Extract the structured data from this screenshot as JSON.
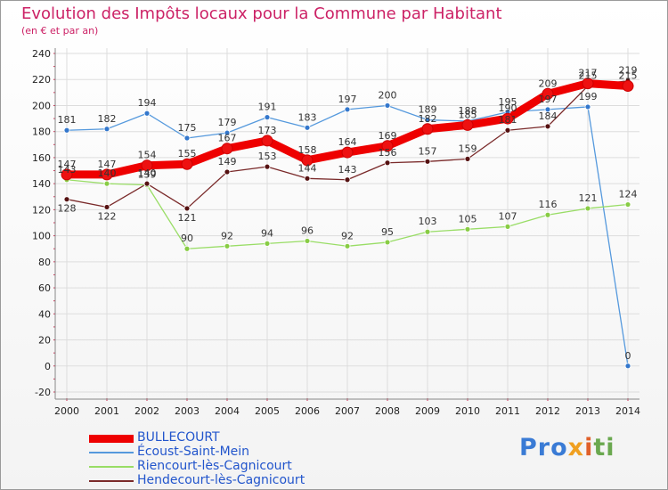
{
  "title": "Evolution des Impôts locaux pour la Commune par Habitant",
  "subtitle": "(en € et par an)",
  "logo": {
    "p1": "Pro",
    "p2": "x",
    "p3": "i",
    "p4": "ti"
  },
  "chart_data": {
    "type": "line",
    "title": "Evolution des Impôts locaux pour la Commune par Habitant",
    "ylabel": "(en € et par an)",
    "ylim": [
      -20,
      240
    ],
    "yticks": [
      -20,
      0,
      20,
      40,
      60,
      80,
      100,
      120,
      140,
      160,
      180,
      200,
      220,
      240
    ],
    "x": [
      "2000",
      "2001",
      "2002",
      "2003",
      "2004",
      "2005",
      "2006",
      "2007",
      "2008",
      "2009",
      "2010",
      "2011",
      "2012",
      "2013",
      "2014"
    ],
    "series": [
      {
        "name": "BULLECOURT",
        "color": "#ee0000",
        "marker": "#ee1111",
        "bold": true,
        "values": [
          147,
          147,
          154,
          155,
          167,
          173,
          158,
          164,
          169,
          182,
          185,
          190,
          209,
          217,
          215
        ]
      },
      {
        "name": "Écoust-Saint-Mein",
        "color": "#5599dd",
        "marker": "#3377cc",
        "bold": false,
        "values": [
          181,
          182,
          194,
          175,
          179,
          191,
          183,
          197,
          200,
          189,
          188,
          195,
          197,
          199,
          0
        ]
      },
      {
        "name": "Riencourt-lès-Cagnicourt",
        "color": "#99dd66",
        "marker": "#88cc44",
        "bold": false,
        "values": [
          143,
          140,
          139,
          90,
          92,
          94,
          96,
          92,
          95,
          103,
          105,
          107,
          116,
          121,
          124
        ]
      },
      {
        "name": "Hendecourt-lès-Cagnicourt",
        "color": "#7a2a2a",
        "marker": "#551111",
        "bold": false,
        "values": [
          128,
          122,
          140,
          121,
          149,
          153,
          144,
          143,
          156,
          157,
          159,
          181,
          184,
          215,
          219
        ]
      }
    ]
  }
}
